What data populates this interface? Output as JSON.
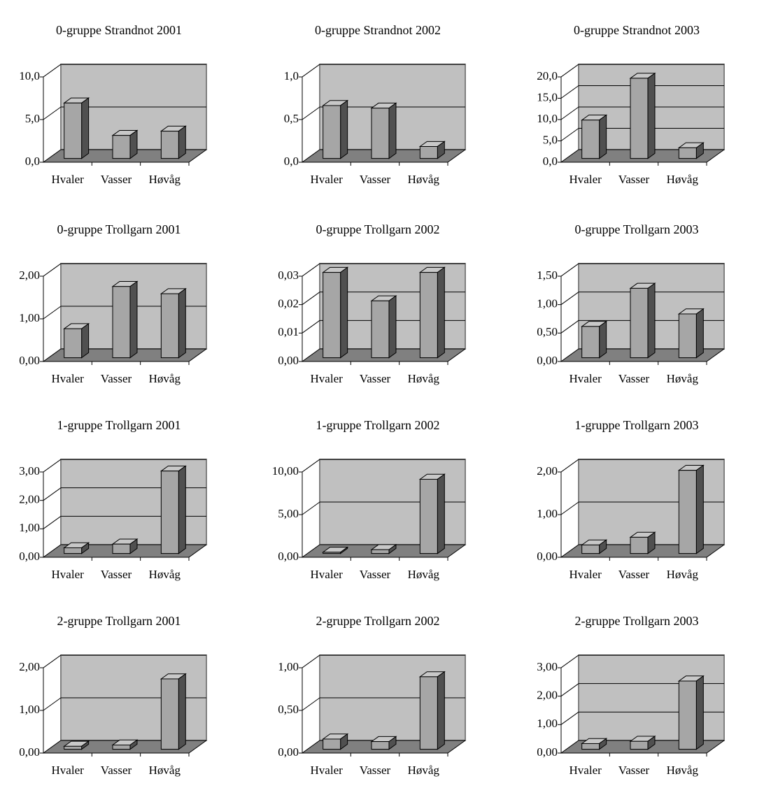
{
  "chart_data": [
    {
      "type": "bar",
      "title": "0-gruppe Strandnot 2001",
      "categories": [
        "Hvaler",
        "Vasser",
        "Høvåg"
      ],
      "values": [
        6.5,
        2.7,
        3.2
      ],
      "color": "#a6a6a6",
      "ylim": [
        0,
        10
      ],
      "yticks": [
        {
          "value": 0,
          "label": "0,0"
        },
        {
          "value": 5,
          "label": "5,0"
        },
        {
          "value": 10,
          "label": "10,0"
        }
      ],
      "grid": true
    },
    {
      "type": "bar",
      "title": "0-gruppe Strandnot 2002",
      "categories": [
        "Hvaler",
        "Vasser",
        "Høvåg"
      ],
      "values": [
        0.62,
        0.59,
        0.14
      ],
      "color": "#a6a6a6",
      "ylim": [
        0,
        1
      ],
      "yticks": [
        {
          "value": 0,
          "label": "0,0"
        },
        {
          "value": 0.5,
          "label": "0,5"
        },
        {
          "value": 1,
          "label": "1,0"
        }
      ],
      "grid": true
    },
    {
      "type": "bar",
      "title": "0-gruppe Strandnot 2003",
      "categories": [
        "Hvaler",
        "Vasser",
        "Høvåg"
      ],
      "values": [
        9.0,
        18.8,
        2.5
      ],
      "color": "#a6a6a6",
      "ylim": [
        0,
        20
      ],
      "yticks": [
        {
          "value": 0,
          "label": "0,0"
        },
        {
          "value": 5,
          "label": "5,0"
        },
        {
          "value": 10,
          "label": "10,0"
        },
        {
          "value": 15,
          "label": "15,0"
        },
        {
          "value": 20,
          "label": "20,0"
        }
      ],
      "grid": true
    },
    {
      "type": "bar",
      "title": "0-gruppe Trollgarn 2001",
      "categories": [
        "Hvaler",
        "Vasser",
        "Høvåg"
      ],
      "values": [
        0.68,
        1.67,
        1.5
      ],
      "color": "#a6a6a6",
      "ylim": [
        0,
        2
      ],
      "yticks": [
        {
          "value": 0,
          "label": "0,00"
        },
        {
          "value": 1,
          "label": "1,00"
        },
        {
          "value": 2,
          "label": "2,00"
        }
      ],
      "grid": true
    },
    {
      "type": "bar",
      "title": "0-gruppe Trollgarn 2002",
      "categories": [
        "Hvaler",
        "Vasser",
        "Høvåg"
      ],
      "values": [
        0.03,
        0.02,
        0.03
      ],
      "color": "#a6a6a6",
      "ylim": [
        0,
        0.03
      ],
      "yticks": [
        {
          "value": 0,
          "label": "0,00"
        },
        {
          "value": 0.01,
          "label": "0,01"
        },
        {
          "value": 0.02,
          "label": "0,02"
        },
        {
          "value": 0.03,
          "label": "0,03"
        }
      ],
      "grid": true
    },
    {
      "type": "bar",
      "title": "0-gruppe Trollgarn 2003",
      "categories": [
        "Hvaler",
        "Vasser",
        "Høvåg"
      ],
      "values": [
        0.55,
        1.22,
        0.77
      ],
      "color": "#a6a6a6",
      "ylim": [
        0,
        1.5
      ],
      "yticks": [
        {
          "value": 0,
          "label": "0,00"
        },
        {
          "value": 0.5,
          "label": "0,50"
        },
        {
          "value": 1,
          "label": "1,00"
        },
        {
          "value": 1.5,
          "label": "1,50"
        }
      ],
      "grid": true
    },
    {
      "type": "bar",
      "title": "1-gruppe Trollgarn 2001",
      "categories": [
        "Hvaler",
        "Vasser",
        "Høvåg"
      ],
      "values": [
        0.2,
        0.33,
        2.9
      ],
      "color": "#a6a6a6",
      "ylim": [
        0,
        3
      ],
      "yticks": [
        {
          "value": 0,
          "label": "0,00"
        },
        {
          "value": 1,
          "label": "1,00"
        },
        {
          "value": 2,
          "label": "2,00"
        },
        {
          "value": 3,
          "label": "3,00"
        }
      ],
      "grid": true
    },
    {
      "type": "bar",
      "title": "1-gruppe Trollgarn 2002",
      "categories": [
        "Hvaler",
        "Vasser",
        "Høvåg"
      ],
      "values": [
        0.15,
        0.45,
        8.7
      ],
      "color": "#a6a6a6",
      "ylim": [
        0,
        10
      ],
      "yticks": [
        {
          "value": 0,
          "label": "0,00"
        },
        {
          "value": 5,
          "label": "5,00"
        },
        {
          "value": 10,
          "label": "10,00"
        }
      ],
      "grid": true
    },
    {
      "type": "bar",
      "title": "1-gruppe Trollgarn 2003",
      "categories": [
        "Hvaler",
        "Vasser",
        "Høvåg"
      ],
      "values": [
        0.2,
        0.38,
        1.95
      ],
      "color": "#a6a6a6",
      "ylim": [
        0,
        2
      ],
      "yticks": [
        {
          "value": 0,
          "label": "0,00"
        },
        {
          "value": 1,
          "label": "1,00"
        },
        {
          "value": 2,
          "label": "2,00"
        }
      ],
      "grid": true
    },
    {
      "type": "bar",
      "title": "2-gruppe Trollgarn 2001",
      "categories": [
        "Hvaler",
        "Vasser",
        "Høvåg"
      ],
      "values": [
        0.07,
        0.1,
        1.65
      ],
      "color": "#a6a6a6",
      "ylim": [
        0,
        2
      ],
      "yticks": [
        {
          "value": 0,
          "label": "0,00"
        },
        {
          "value": 1,
          "label": "1,00"
        },
        {
          "value": 2,
          "label": "2,00"
        }
      ],
      "grid": true
    },
    {
      "type": "bar",
      "title": "2-gruppe Trollgarn 2002",
      "categories": [
        "Hvaler",
        "Vasser",
        "Høvåg"
      ],
      "values": [
        0.12,
        0.09,
        0.85
      ],
      "color": "#a6a6a6",
      "ylim": [
        0,
        1
      ],
      "yticks": [
        {
          "value": 0,
          "label": "0,00"
        },
        {
          "value": 0.5,
          "label": "0,50"
        },
        {
          "value": 1,
          "label": "1,00"
        }
      ],
      "grid": true
    },
    {
      "type": "bar",
      "title": "2-gruppe Trollgarn 2003",
      "categories": [
        "Hvaler",
        "Vasser",
        "Høvåg"
      ],
      "values": [
        0.2,
        0.28,
        2.4
      ],
      "color": "#a6a6a6",
      "ylim": [
        0,
        3
      ],
      "yticks": [
        {
          "value": 0,
          "label": "0,00"
        },
        {
          "value": 1,
          "label": "1,00"
        },
        {
          "value": 2,
          "label": "2,00"
        },
        {
          "value": 3,
          "label": "3,00"
        }
      ],
      "grid": true
    }
  ]
}
